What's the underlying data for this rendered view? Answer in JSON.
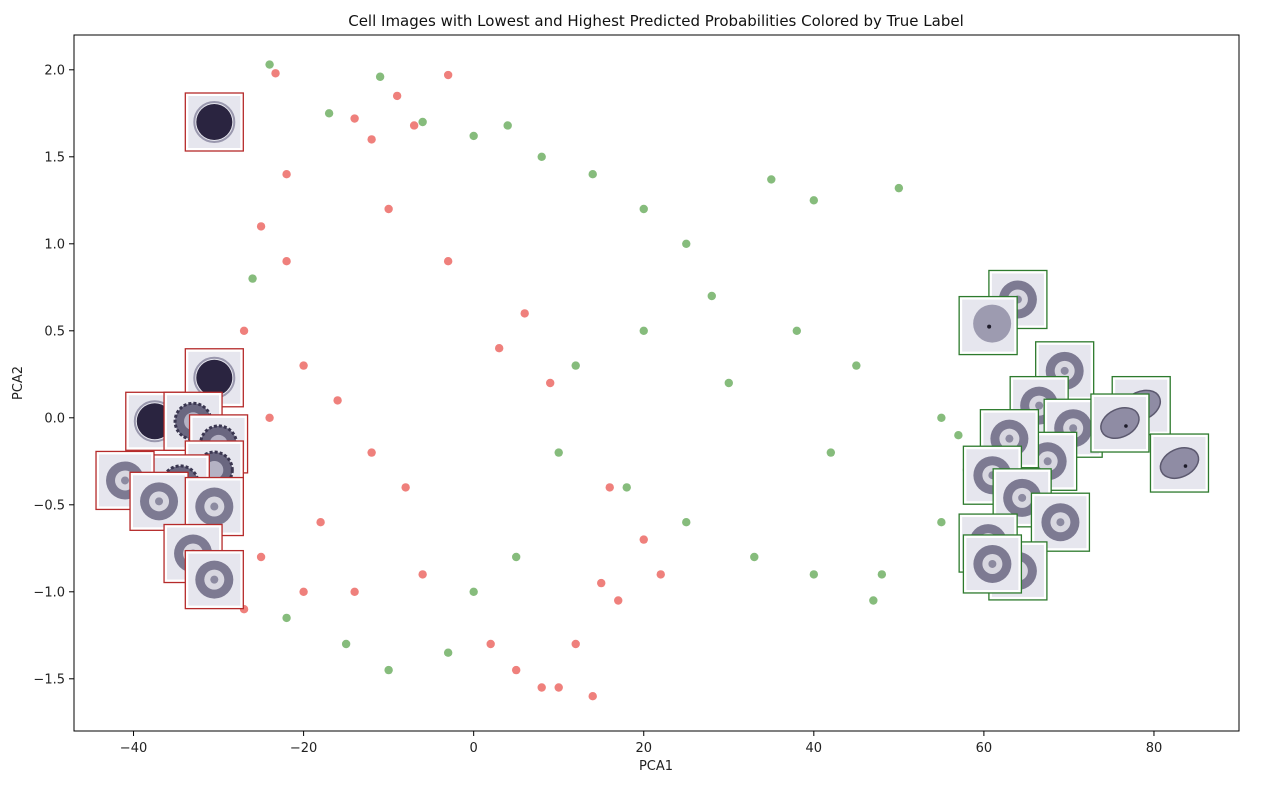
{
  "chart_data": {
    "type": "scatter",
    "title": "Cell Images with Lowest and Highest Predicted Probabilities Colored by True Label",
    "xlabel": "PCA1",
    "ylabel": "PCA2",
    "xlim": [
      -47,
      90
    ],
    "ylim": [
      -1.8,
      2.2
    ],
    "xticks": [
      -40,
      -20,
      0,
      20,
      40,
      60,
      80
    ],
    "xtick_labels": [
      "−40",
      "−20",
      "0",
      "20",
      "40",
      "60",
      "80"
    ],
    "yticks": [
      -1.5,
      -1.0,
      -0.5,
      0.0,
      0.5,
      1.0,
      1.5,
      2.0
    ],
    "ytick_labels": [
      "−1.5",
      "−1.0",
      "−0.5",
      "0.0",
      "0.5",
      "1.0",
      "1.5",
      "2.0"
    ],
    "grid": false,
    "colors": {
      "red": "#e3241d",
      "green": "#2e8b1e",
      "red_border": "#b52a2a",
      "green_border": "#2d7a2d"
    },
    "series": [
      {
        "name": "red",
        "color": "#e3241d",
        "points": [
          [
            -23.3,
            1.98
          ],
          [
            -3,
            1.97
          ],
          [
            -14,
            1.72
          ],
          [
            -9,
            1.85
          ],
          [
            -7,
            1.68
          ],
          [
            -12,
            1.6
          ],
          [
            -28,
            1.65
          ],
          [
            -25,
            1.1
          ],
          [
            -22,
            0.9
          ],
          [
            -27,
            0.5
          ],
          [
            -20,
            0.3
          ],
          [
            -16,
            0.1
          ],
          [
            -12,
            -0.2
          ],
          [
            -8,
            -0.4
          ],
          [
            -18,
            -0.6
          ],
          [
            -25,
            -0.8
          ],
          [
            -27,
            -1.1
          ],
          [
            -14,
            -1.0
          ],
          [
            -6,
            -0.9
          ],
          [
            2,
            -1.3
          ],
          [
            5,
            -1.45
          ],
          [
            8,
            -1.55
          ],
          [
            10,
            -1.55
          ],
          [
            14,
            -1.6
          ],
          [
            12,
            -1.3
          ],
          [
            15,
            -0.95
          ],
          [
            17,
            -1.05
          ],
          [
            20,
            -0.7
          ],
          [
            22,
            -0.9
          ],
          [
            6,
            0.6
          ],
          [
            9,
            0.2
          ],
          [
            -3,
            0.9
          ],
          [
            -10,
            1.2
          ],
          [
            3,
            0.4
          ],
          [
            16,
            -0.4
          ],
          [
            -30,
            -0.4
          ],
          [
            -29,
            -0.1
          ],
          [
            -22,
            1.4
          ],
          [
            -24,
            0.0
          ],
          [
            -20,
            -1.0
          ]
        ]
      },
      {
        "name": "green",
        "color": "#2e8b1e",
        "points": [
          [
            -24,
            2.03
          ],
          [
            -17,
            1.75
          ],
          [
            -11,
            1.96
          ],
          [
            -6,
            1.7
          ],
          [
            0,
            1.62
          ],
          [
            4,
            1.68
          ],
          [
            8,
            1.5
          ],
          [
            14,
            1.4
          ],
          [
            20,
            1.2
          ],
          [
            25,
            1.0
          ],
          [
            35,
            1.37
          ],
          [
            40,
            1.25
          ],
          [
            50,
            1.32
          ],
          [
            28,
            0.7
          ],
          [
            38,
            0.5
          ],
          [
            45,
            0.3
          ],
          [
            55,
            0.0
          ],
          [
            58,
            -0.3
          ],
          [
            55,
            -0.6
          ],
          [
            48,
            -0.9
          ],
          [
            47,
            -1.05
          ],
          [
            40,
            -0.9
          ],
          [
            33,
            -0.8
          ],
          [
            25,
            -0.6
          ],
          [
            18,
            -0.4
          ],
          [
            10,
            -0.2
          ],
          [
            12,
            0.3
          ],
          [
            20,
            0.5
          ],
          [
            30,
            0.2
          ],
          [
            42,
            -0.2
          ],
          [
            5,
            -0.8
          ],
          [
            0,
            -1.0
          ],
          [
            -3,
            -1.35
          ],
          [
            -10,
            -1.45
          ],
          [
            -15,
            -1.3
          ],
          [
            -22,
            -1.15
          ],
          [
            -28,
            -0.95
          ],
          [
            -30,
            0.3
          ],
          [
            -26,
            0.8
          ],
          [
            62,
            0.55
          ],
          [
            57,
            -0.1
          ]
        ]
      }
    ],
    "thumbnails": [
      {
        "label": "red",
        "x": -30.5,
        "y": 1.7,
        "glyph": "dark"
      },
      {
        "label": "red",
        "x": -30.5,
        "y": 0.23,
        "glyph": "dark"
      },
      {
        "label": "red",
        "x": -37.5,
        "y": -0.02,
        "glyph": "dark"
      },
      {
        "label": "red",
        "x": -33,
        "y": -0.02,
        "glyph": "spiky"
      },
      {
        "label": "red",
        "x": -30,
        "y": -0.15,
        "glyph": "spiky"
      },
      {
        "label": "red",
        "x": -30.5,
        "y": -0.3,
        "glyph": "spiky"
      },
      {
        "label": "red",
        "x": -34.5,
        "y": -0.38,
        "glyph": "spiky"
      },
      {
        "label": "red",
        "x": -41,
        "y": -0.36,
        "glyph": "ring"
      },
      {
        "label": "red",
        "x": -37,
        "y": -0.48,
        "glyph": "ring"
      },
      {
        "label": "red",
        "x": -30.5,
        "y": -0.51,
        "glyph": "ring"
      },
      {
        "label": "red",
        "x": -33,
        "y": -0.78,
        "glyph": "ring"
      },
      {
        "label": "red",
        "x": -30.5,
        "y": -0.93,
        "glyph": "ring"
      },
      {
        "label": "green",
        "x": 64,
        "y": 0.68,
        "glyph": "ring"
      },
      {
        "label": "green",
        "x": 60.5,
        "y": 0.53,
        "glyph": "spot"
      },
      {
        "label": "green",
        "x": 69.5,
        "y": 0.27,
        "glyph": "ring"
      },
      {
        "label": "green",
        "x": 66.5,
        "y": 0.07,
        "glyph": "ring"
      },
      {
        "label": "green",
        "x": 70.5,
        "y": -0.06,
        "glyph": "ring"
      },
      {
        "label": "green",
        "x": 67.5,
        "y": -0.25,
        "glyph": "ring"
      },
      {
        "label": "green",
        "x": 63,
        "y": -0.12,
        "glyph": "ring"
      },
      {
        "label": "green",
        "x": 61,
        "y": -0.33,
        "glyph": "ring"
      },
      {
        "label": "green",
        "x": 64.5,
        "y": -0.46,
        "glyph": "ring"
      },
      {
        "label": "green",
        "x": 69,
        "y": -0.6,
        "glyph": "ring"
      },
      {
        "label": "green",
        "x": 60.5,
        "y": -0.72,
        "glyph": "ring"
      },
      {
        "label": "green",
        "x": 64,
        "y": -0.88,
        "glyph": "ring"
      },
      {
        "label": "green",
        "x": 61,
        "y": -0.84,
        "glyph": "ring"
      },
      {
        "label": "green",
        "x": 78.5,
        "y": 0.07,
        "glyph": "oval"
      },
      {
        "label": "green",
        "x": 76,
        "y": -0.03,
        "glyph": "oval"
      },
      {
        "label": "green",
        "x": 83,
        "y": -0.26,
        "glyph": "oval"
      }
    ]
  }
}
